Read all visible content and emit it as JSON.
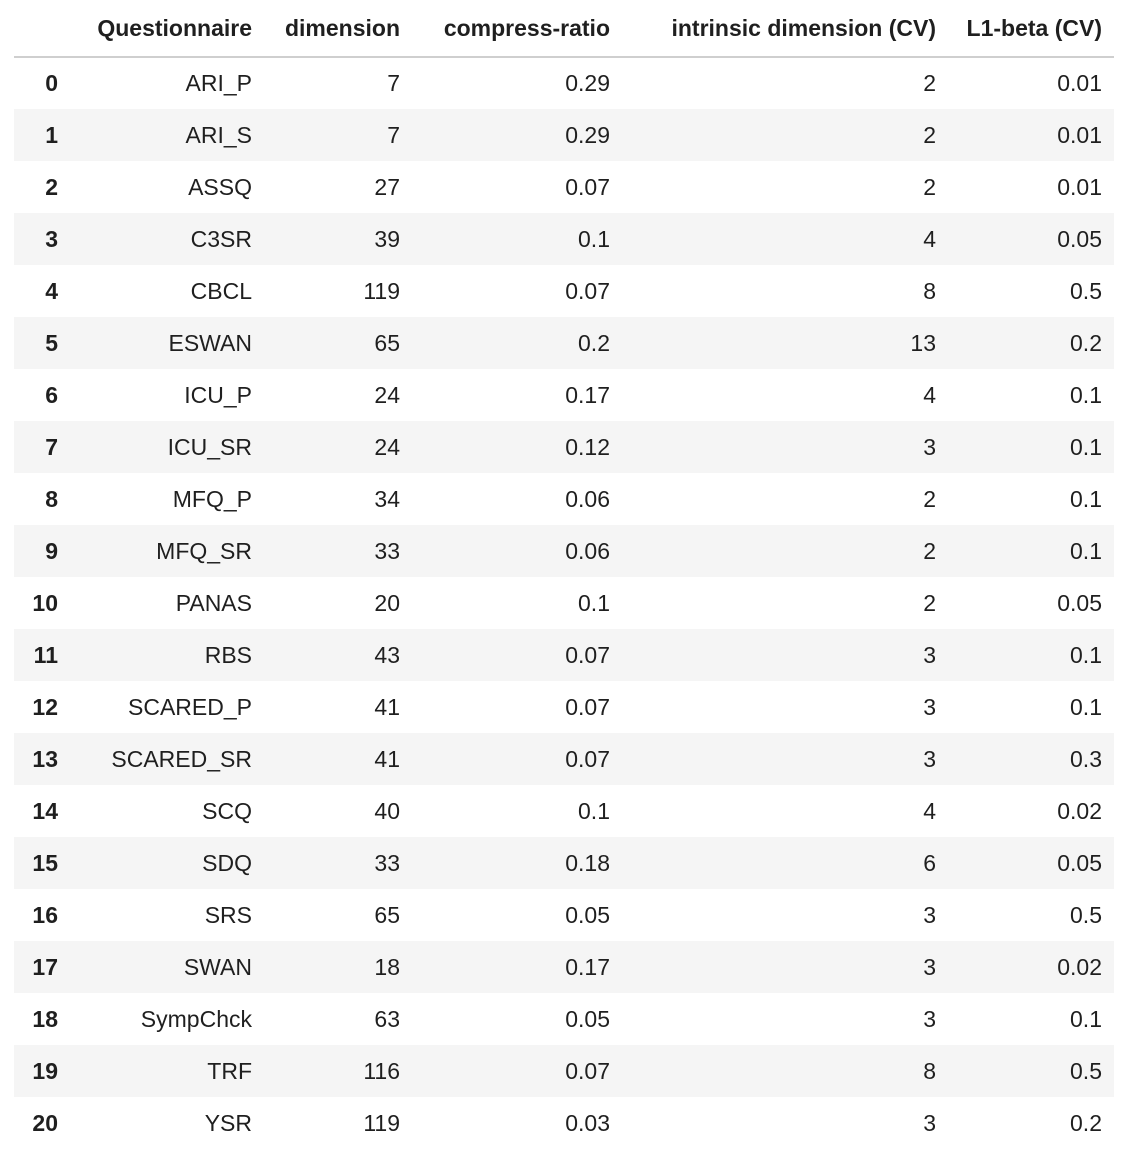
{
  "table": {
    "headers": [
      "",
      "Questionnaire",
      "dimension",
      "compress-ratio",
      "intrinsic dimension (CV)",
      "L1-beta (CV)"
    ],
    "rows": [
      {
        "index": "0",
        "questionnaire": "ARI_P",
        "dimension": "7",
        "compress_ratio": "0.29",
        "intrinsic_dimension": "2",
        "l1_beta": "0.01"
      },
      {
        "index": "1",
        "questionnaire": "ARI_S",
        "dimension": "7",
        "compress_ratio": "0.29",
        "intrinsic_dimension": "2",
        "l1_beta": "0.01"
      },
      {
        "index": "2",
        "questionnaire": "ASSQ",
        "dimension": "27",
        "compress_ratio": "0.07",
        "intrinsic_dimension": "2",
        "l1_beta": "0.01"
      },
      {
        "index": "3",
        "questionnaire": "C3SR",
        "dimension": "39",
        "compress_ratio": "0.1",
        "intrinsic_dimension": "4",
        "l1_beta": "0.05"
      },
      {
        "index": "4",
        "questionnaire": "CBCL",
        "dimension": "119",
        "compress_ratio": "0.07",
        "intrinsic_dimension": "8",
        "l1_beta": "0.5"
      },
      {
        "index": "5",
        "questionnaire": "ESWAN",
        "dimension": "65",
        "compress_ratio": "0.2",
        "intrinsic_dimension": "13",
        "l1_beta": "0.2"
      },
      {
        "index": "6",
        "questionnaire": "ICU_P",
        "dimension": "24",
        "compress_ratio": "0.17",
        "intrinsic_dimension": "4",
        "l1_beta": "0.1"
      },
      {
        "index": "7",
        "questionnaire": "ICU_SR",
        "dimension": "24",
        "compress_ratio": "0.12",
        "intrinsic_dimension": "3",
        "l1_beta": "0.1"
      },
      {
        "index": "8",
        "questionnaire": "MFQ_P",
        "dimension": "34",
        "compress_ratio": "0.06",
        "intrinsic_dimension": "2",
        "l1_beta": "0.1"
      },
      {
        "index": "9",
        "questionnaire": "MFQ_SR",
        "dimension": "33",
        "compress_ratio": "0.06",
        "intrinsic_dimension": "2",
        "l1_beta": "0.1"
      },
      {
        "index": "10",
        "questionnaire": "PANAS",
        "dimension": "20",
        "compress_ratio": "0.1",
        "intrinsic_dimension": "2",
        "l1_beta": "0.05"
      },
      {
        "index": "11",
        "questionnaire": "RBS",
        "dimension": "43",
        "compress_ratio": "0.07",
        "intrinsic_dimension": "3",
        "l1_beta": "0.1"
      },
      {
        "index": "12",
        "questionnaire": "SCARED_P",
        "dimension": "41",
        "compress_ratio": "0.07",
        "intrinsic_dimension": "3",
        "l1_beta": "0.1"
      },
      {
        "index": "13",
        "questionnaire": "SCARED_SR",
        "dimension": "41",
        "compress_ratio": "0.07",
        "intrinsic_dimension": "3",
        "l1_beta": "0.3"
      },
      {
        "index": "14",
        "questionnaire": "SCQ",
        "dimension": "40",
        "compress_ratio": "0.1",
        "intrinsic_dimension": "4",
        "l1_beta": "0.02"
      },
      {
        "index": "15",
        "questionnaire": "SDQ",
        "dimension": "33",
        "compress_ratio": "0.18",
        "intrinsic_dimension": "6",
        "l1_beta": "0.05"
      },
      {
        "index": "16",
        "questionnaire": "SRS",
        "dimension": "65",
        "compress_ratio": "0.05",
        "intrinsic_dimension": "3",
        "l1_beta": "0.5"
      },
      {
        "index": "17",
        "questionnaire": "SWAN",
        "dimension": "18",
        "compress_ratio": "0.17",
        "intrinsic_dimension": "3",
        "l1_beta": "0.02"
      },
      {
        "index": "18",
        "questionnaire": "SympChck",
        "dimension": "63",
        "compress_ratio": "0.05",
        "intrinsic_dimension": "3",
        "l1_beta": "0.1"
      },
      {
        "index": "19",
        "questionnaire": "TRF",
        "dimension": "116",
        "compress_ratio": "0.07",
        "intrinsic_dimension": "8",
        "l1_beta": "0.5"
      },
      {
        "index": "20",
        "questionnaire": "YSR",
        "dimension": "119",
        "compress_ratio": "0.03",
        "intrinsic_dimension": "3",
        "l1_beta": "0.2"
      }
    ]
  },
  "colors": {
    "stripe": "#f5f5f5",
    "header_border": "#cfcfcf",
    "text": "#1f1f1f"
  }
}
